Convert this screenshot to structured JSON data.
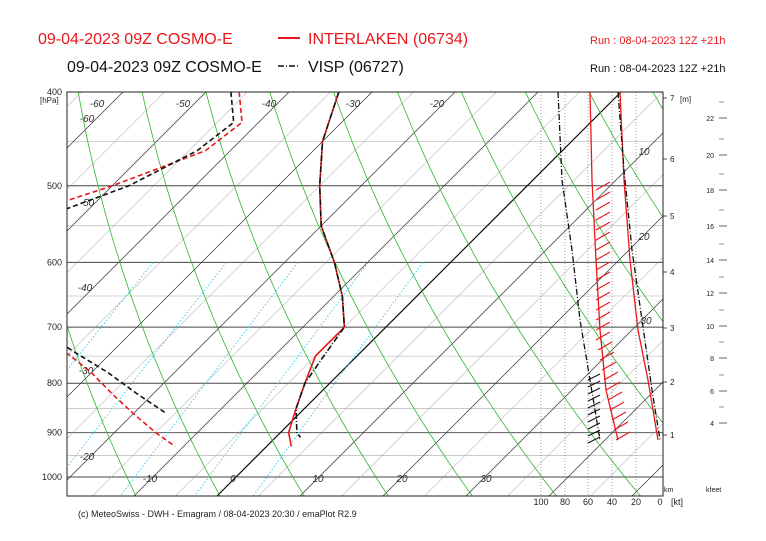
{
  "header": {
    "line1": {
      "text": "09-04-2023 09Z COSMO-E",
      "station": "INTERLAKEN (06734)",
      "run": "Run : 08-04-2023 12Z +21h",
      "color": "#e8171b"
    },
    "line2": {
      "text": "09-04-2023 09Z COSMO-E",
      "station": "VISP (06727)",
      "run": "Run : 08-04-2023 12Z +21h",
      "color": "#111111"
    }
  },
  "footer": "(c) MeteoSwiss - DWH - Emagram / 08-04-2023  20:30 / emaPlot R2.9",
  "colors": {
    "temp_interlaken": "#e8171b",
    "temp_visp": "#111111",
    "dry_adiabat": "#2db52d",
    "mixing_ratio": "#33c6e6",
    "grid": "#9a9a9a"
  },
  "chart_data": {
    "type": "line",
    "title": "",
    "y_axis": {
      "label": "[hPa]",
      "scale": "log-pressure",
      "range": [
        1000,
        400
      ],
      "ticks": [
        400,
        500,
        600,
        700,
        800,
        900,
        1000
      ]
    },
    "x_axis": {
      "label": "",
      "ticks": [
        -10,
        0,
        10,
        20,
        30
      ]
    },
    "isotherm_labels": [
      -60,
      -50,
      -40,
      -30,
      -20,
      -60,
      -50,
      -40,
      -30,
      -20,
      -10,
      0,
      10,
      20,
      30
    ],
    "km_axis": {
      "label": "[m]",
      "unit_label": "km",
      "ticks": [
        1,
        2,
        3,
        4,
        5,
        6,
        7
      ]
    },
    "kfeet_axis": {
      "label": "kfeet",
      "ticks": [
        4,
        6,
        8,
        10,
        12,
        14,
        16,
        18,
        20,
        22
      ]
    },
    "wind_axis": {
      "label": "[kt]",
      "ticks": [
        100,
        80,
        60,
        40,
        20,
        0
      ]
    },
    "rh_labels": [
      10,
      20,
      30
    ],
    "series": [
      {
        "name": "INTERLAKEN (06734)",
        "kind": "temperature",
        "p": [
          400,
          450,
          500,
          550,
          600,
          650,
          700,
          750,
          800,
          850,
          900,
          930
        ],
        "t": [
          -34,
          -30,
          -25,
          -20,
          -14,
          -9,
          -5,
          -5,
          -3,
          -1,
          1,
          3
        ]
      },
      {
        "name": "INTERLAKEN (06734)",
        "kind": "dewpoint",
        "p": [
          400,
          430,
          460,
          500,
          530,
          560,
          600,
          650,
          700,
          740,
          780,
          820,
          860,
          900,
          930
        ],
        "t": [
          -46,
          -42,
          -43,
          -50,
          -56,
          -57,
          -55,
          -50,
          -44,
          -36,
          -30,
          -25,
          -20,
          -15,
          -11
        ]
      },
      {
        "name": "VISP (06727)",
        "kind": "temperature",
        "p": [
          400,
          450,
          500,
          550,
          600,
          650,
          700,
          750,
          800,
          850,
          900,
          910
        ],
        "t": [
          -34,
          -30,
          -25,
          -20,
          -14,
          -9,
          -5,
          -4,
          -3,
          -1,
          2,
          3
        ]
      },
      {
        "name": "VISP (06727)",
        "kind": "dewpoint",
        "p": [
          400,
          430,
          460,
          500,
          530,
          560,
          600,
          650,
          700,
          740,
          780,
          820,
          860
        ],
        "t": [
          -47,
          -43,
          -44,
          -48,
          -53,
          -57,
          -54,
          -48,
          -42,
          -35,
          -28,
          -22,
          -16
        ]
      }
    ]
  }
}
